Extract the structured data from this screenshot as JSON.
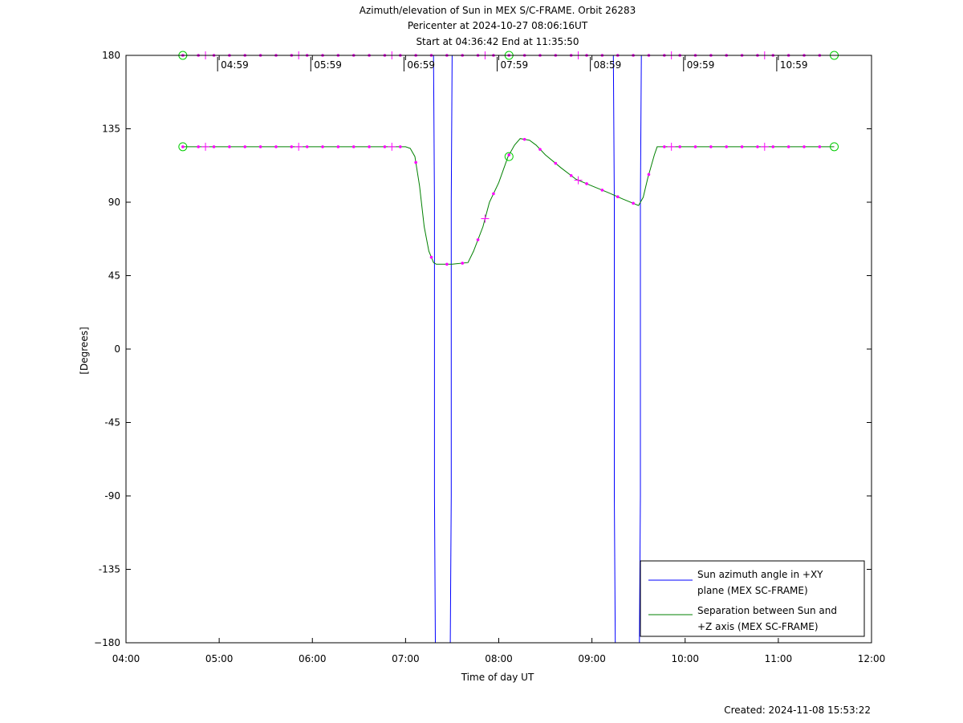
{
  "header": {
    "title_line1": "Azimuth/elevation of Sun in MEX S/C-FRAME.  Orbit 26283",
    "title_line2": "Pericenter at 2024-10-27 08:06:16UT",
    "title_line3": "Start at 04:36:42 End at 11:35:50"
  },
  "footer": {
    "created": "Created: 2024-11-08 15:53:22"
  },
  "chart_data": {
    "type": "line",
    "title": "Azimuth/elevation of Sun in MEX S/C-FRAME.  Orbit 26283",
    "xlabel": "Time of day UT",
    "ylabel": "[Degrees]",
    "xlim": [
      4.0,
      12.0
    ],
    "ylim": [
      -180,
      180
    ],
    "x_ticks": [
      4,
      5,
      6,
      7,
      8,
      9,
      10,
      11,
      12
    ],
    "x_tick_labels": [
      "04:00",
      "05:00",
      "06:00",
      "07:00",
      "08:00",
      "09:00",
      "10:00",
      "11:00",
      "12:00"
    ],
    "y_ticks": [
      180,
      135,
      90,
      45,
      0,
      -45,
      -90,
      -135,
      -180
    ],
    "y_tick_labels": [
      "180",
      "135",
      "90",
      "45",
      "0",
      "-45",
      "-90",
      "-135",
      "−180"
    ],
    "legend_position": "bottom-right",
    "hour_annotations": [
      {
        "x": 4.983,
        "label": "04:59"
      },
      {
        "x": 5.983,
        "label": "05:59"
      },
      {
        "x": 6.983,
        "label": "06:59"
      },
      {
        "x": 7.983,
        "label": "07:59"
      },
      {
        "x": 8.983,
        "label": "08:59"
      },
      {
        "x": 9.983,
        "label": "09:59"
      },
      {
        "x": 10.983,
        "label": "10:59"
      }
    ],
    "series": [
      {
        "name": "Sun azimuth angle in +XY plane (MEX SC-FRAME)",
        "color": "#0000ff",
        "x": [
          4.61,
          7.3,
          7.31,
          7.31,
          7.32,
          7.48,
          7.49,
          7.49,
          7.5,
          9.23,
          9.24,
          9.24,
          9.25,
          9.51,
          9.52,
          9.52,
          9.53,
          11.6
        ],
        "y": [
          180,
          180,
          90,
          -90,
          -180,
          -180,
          -90,
          90,
          180,
          180,
          90,
          -90,
          -180,
          -180,
          -90,
          90,
          180,
          180
        ]
      },
      {
        "name": "Separation between Sun and +Z axis (MEX SC-FRAME)",
        "color": "#008000",
        "x": [
          4.61,
          7.0,
          7.05,
          7.1,
          7.15,
          7.2,
          7.25,
          7.3,
          7.33,
          7.5,
          7.67,
          7.73,
          7.83,
          7.9,
          8.0,
          8.05,
          8.1,
          8.17,
          8.23,
          8.33,
          8.4,
          8.5,
          8.67,
          8.83,
          9.0,
          9.17,
          9.33,
          9.5,
          9.55,
          9.6,
          9.67,
          9.7,
          11.6
        ],
        "y": [
          124,
          124,
          123,
          118,
          100,
          75,
          60,
          53,
          52,
          52,
          53,
          60,
          75,
          90,
          102,
          110,
          118,
          125,
          129,
          128,
          125,
          119,
          111,
          104,
          100,
          96,
          92,
          88,
          93,
          105,
          119,
          124,
          124
        ]
      }
    ]
  }
}
